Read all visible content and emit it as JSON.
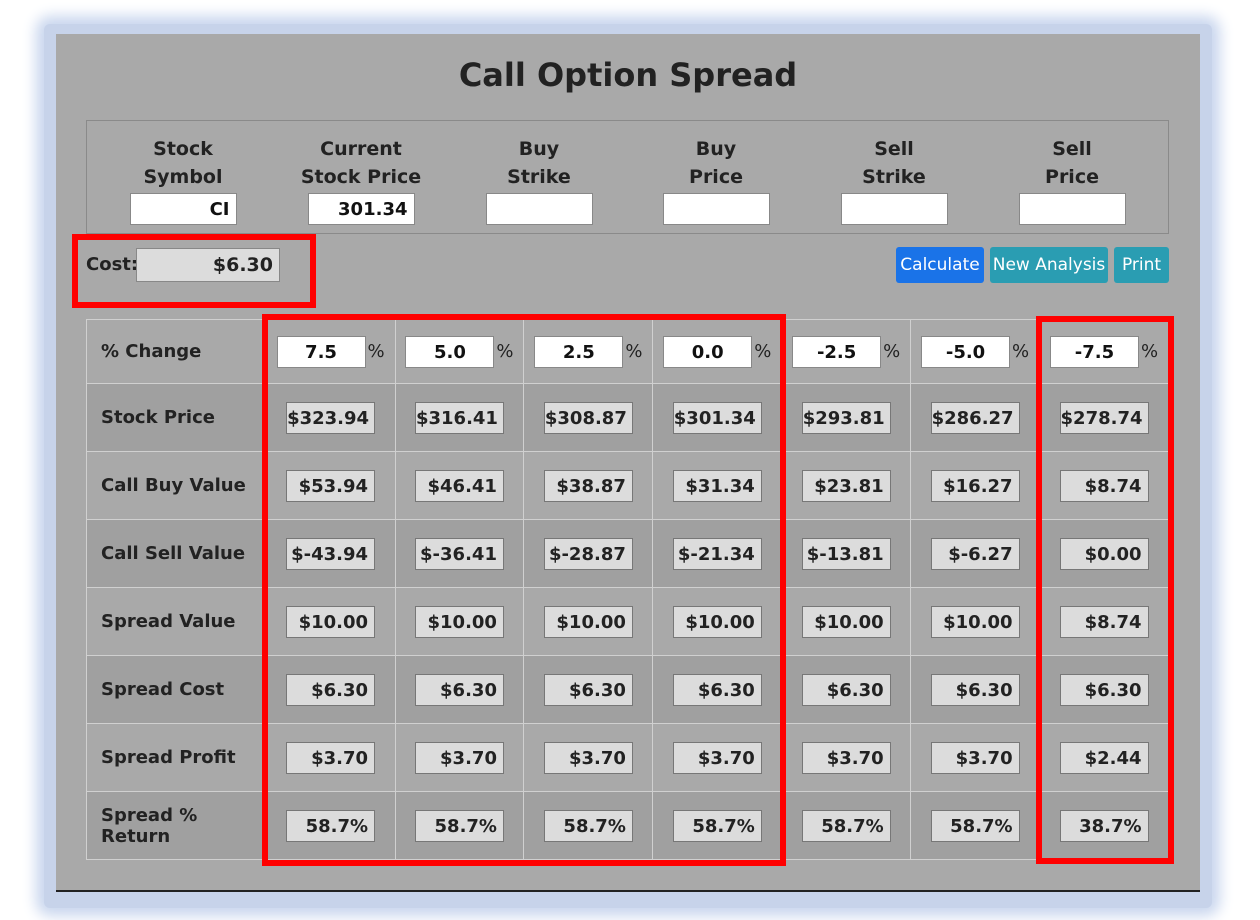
{
  "title": "Call Option Spread",
  "inputs": [
    {
      "label": "Stock\nSymbol",
      "value": "CI"
    },
    {
      "label": "Current\nStock Price",
      "value": "301.34"
    },
    {
      "label": "Buy\nStrike",
      "value": ""
    },
    {
      "label": "Buy\nPrice",
      "value": ""
    },
    {
      "label": "Sell\nStrike",
      "value": ""
    },
    {
      "label": "Sell\nPrice",
      "value": ""
    }
  ],
  "cost": {
    "label": "Cost:",
    "value": "$6.30"
  },
  "buttons": {
    "calculate": "Calculate",
    "new_analysis": "New Analysis",
    "print": "Print"
  },
  "percent_sign": "%",
  "grid": {
    "change_label": "% Change",
    "changes": [
      "7.5",
      "5.0",
      "2.5",
      "0.0",
      "-2.5",
      "-5.0",
      "-7.5"
    ],
    "rows": [
      {
        "label": "Stock Price",
        "values": [
          "$323.94",
          "$316.41",
          "$308.87",
          "$301.34",
          "$293.81",
          "$286.27",
          "$278.74"
        ]
      },
      {
        "label": "Call Buy Value",
        "values": [
          "$53.94",
          "$46.41",
          "$38.87",
          "$31.34",
          "$23.81",
          "$16.27",
          "$8.74"
        ]
      },
      {
        "label": "Call Sell Value",
        "values": [
          "$-43.94",
          "$-36.41",
          "$-28.87",
          "$-21.34",
          "$-13.81",
          "$-6.27",
          "$0.00"
        ]
      },
      {
        "label": "Spread Value",
        "values": [
          "$10.00",
          "$10.00",
          "$10.00",
          "$10.00",
          "$10.00",
          "$10.00",
          "$8.74"
        ]
      },
      {
        "label": "Spread Cost",
        "values": [
          "$6.30",
          "$6.30",
          "$6.30",
          "$6.30",
          "$6.30",
          "$6.30",
          "$6.30"
        ]
      },
      {
        "label": "Spread Profit",
        "values": [
          "$3.70",
          "$3.70",
          "$3.70",
          "$3.70",
          "$3.70",
          "$3.70",
          "$2.44"
        ]
      },
      {
        "label": "Spread % Return",
        "values": [
          "58.7%",
          "58.7%",
          "58.7%",
          "58.7%",
          "58.7%",
          "58.7%",
          "38.7%"
        ]
      }
    ]
  },
  "colors": {
    "highlight": "#ff0000",
    "primary_button": "#1a73e8",
    "info_button": "#2a9db2",
    "panel": "#a9a9a9"
  }
}
